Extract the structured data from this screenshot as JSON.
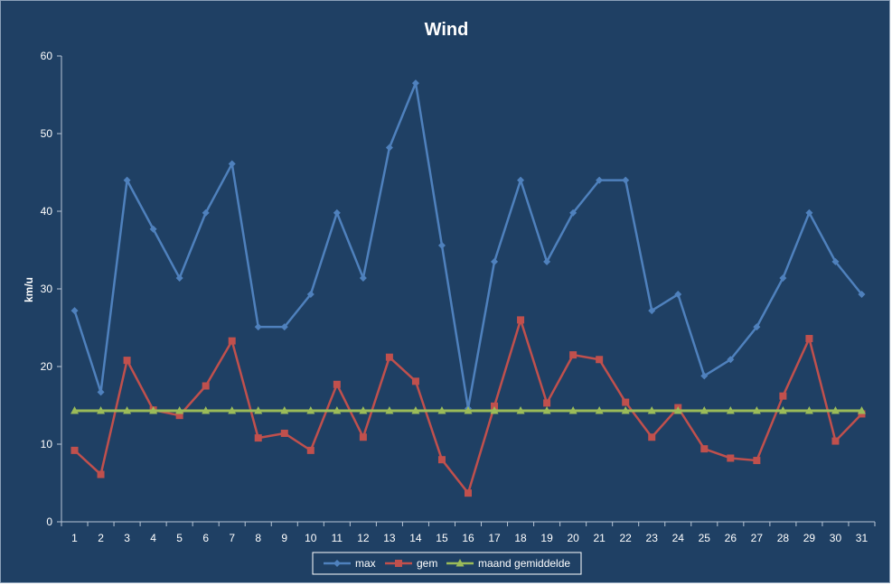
{
  "chart_data": {
    "type": "line",
    "title": "Wind",
    "xlabel": "",
    "ylabel": "km/u",
    "ylim": [
      0,
      60
    ],
    "yticks": [
      0,
      10,
      20,
      30,
      40,
      50,
      60
    ],
    "grid": false,
    "legend_position": "bottom",
    "categories": [
      "1",
      "2",
      "3",
      "4",
      "5",
      "6",
      "7",
      "8",
      "9",
      "10",
      "11",
      "12",
      "13",
      "14",
      "15",
      "16",
      "17",
      "18",
      "19",
      "20",
      "21",
      "22",
      "23",
      "24",
      "25",
      "26",
      "27",
      "28",
      "29",
      "30",
      "31"
    ],
    "series": [
      {
        "name": "max",
        "color": "#4f81bd",
        "marker": "diamond",
        "values": [
          27.2,
          16.7,
          44.0,
          37.7,
          31.4,
          39.8,
          46.1,
          25.1,
          25.1,
          29.3,
          39.8,
          31.4,
          48.2,
          56.5,
          35.6,
          14.6,
          33.5,
          44.0,
          33.5,
          39.8,
          44.0,
          44.0,
          27.2,
          29.3,
          18.8,
          20.9,
          25.1,
          31.4,
          39.8,
          33.5,
          29.3
        ]
      },
      {
        "name": "gem",
        "color": "#c0504d",
        "marker": "square",
        "values": [
          9.2,
          6.1,
          20.8,
          14.4,
          13.7,
          17.5,
          23.3,
          10.8,
          11.4,
          9.2,
          17.7,
          10.9,
          21.2,
          18.1,
          8.0,
          3.7,
          14.9,
          26.0,
          15.3,
          21.5,
          20.9,
          15.4,
          10.9,
          14.7,
          9.4,
          8.2,
          7.9,
          16.2,
          23.6,
          10.4,
          13.9
        ]
      },
      {
        "name": "maand gemiddelde",
        "color": "#9bbb59",
        "marker": "triangle",
        "values": [
          14.3,
          14.3,
          14.3,
          14.3,
          14.3,
          14.3,
          14.3,
          14.3,
          14.3,
          14.3,
          14.3,
          14.3,
          14.3,
          14.3,
          14.3,
          14.3,
          14.3,
          14.3,
          14.3,
          14.3,
          14.3,
          14.3,
          14.3,
          14.3,
          14.3,
          14.3,
          14.3,
          14.3,
          14.3,
          14.3,
          14.3
        ]
      }
    ]
  },
  "colors": {
    "background": "#1f4064",
    "axis": "#b8c6d6",
    "text": "#ffffff"
  }
}
